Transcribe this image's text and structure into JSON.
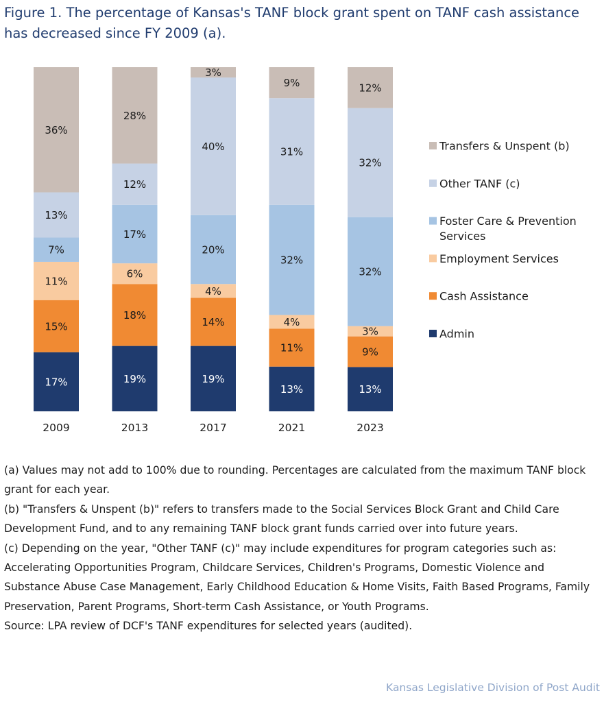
{
  "title": "Figure 1. The percentage of Kansas's TANF block grant spent on TANF cash assistance has decreased since FY 2009 (a).",
  "chart_data": {
    "type": "bar",
    "stacked": true,
    "categories": [
      "2009",
      "2013",
      "2017",
      "2021",
      "2023"
    ],
    "series": [
      {
        "name": "Admin",
        "color": "#1f3b6e",
        "label_color": "#ffffff",
        "values": [
          17,
          19,
          19,
          13,
          13
        ]
      },
      {
        "name": "Cash Assistance",
        "color": "#f08a33",
        "label_color": "#1b1b1b",
        "values": [
          15,
          18,
          14,
          11,
          9
        ]
      },
      {
        "name": "Employment Services",
        "color": "#f9cba0",
        "label_color": "#1b1b1b",
        "values": [
          11,
          6,
          4,
          4,
          3
        ]
      },
      {
        "name": "Foster Care & Prevention Services",
        "legend_lines": [
          "Foster Care & Prevention",
          "Services"
        ],
        "color": "#a6c4e3",
        "label_color": "#1b1b1b",
        "values": [
          7,
          17,
          20,
          32,
          32
        ]
      },
      {
        "name": "Other TANF (c)",
        "color": "#c6d2e5",
        "label_color": "#1b1b1b",
        "values": [
          13,
          12,
          40,
          31,
          32
        ]
      },
      {
        "name": "Transfers & Unspent (b)",
        "color": "#c9bdb6",
        "label_color": "#1b1b1b",
        "values": [
          36,
          28,
          3,
          9,
          12
        ]
      }
    ],
    "value_suffix": "%",
    "legend_position": "right",
    "grid": false,
    "ylim": [
      0,
      100
    ]
  },
  "notes": [
    "(a) Values may not add to 100% due to rounding. Percentages are calculated from the maximum TANF block grant for each year.",
    "(b) \"Transfers & Unspent (b)\" refers to transfers made to the Social Services Block Grant and Child Care Development Fund, and to any remaining TANF block grant funds carried over into future years.",
    "(c) Depending on the year, \"Other TANF (c)\" may include expenditures for program categories such as: Accelerating Opportunities Program, Childcare Services, Children's Programs, Domestic Violence and Substance Abuse Case Management, Early Childhood Education & Home Visits, Faith Based Programs, Family Preservation, Parent Programs, Short-term Cash Assistance, or Youth Programs.",
    "Source: LPA review of DCF's TANF expenditures for selected years (audited)."
  ],
  "credit": "Kansas Legislative Division of Post Audit"
}
